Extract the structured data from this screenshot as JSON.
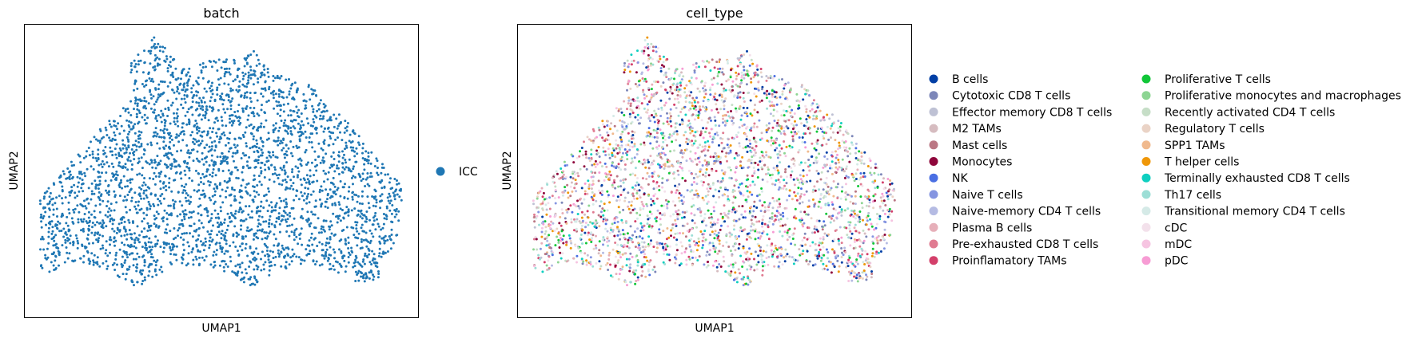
{
  "chart_data": [
    {
      "type": "scatter",
      "title": "batch",
      "xlabel": "UMAP1",
      "ylabel": "UMAP2",
      "grid": false,
      "ticks": false,
      "legend_placement": "right",
      "series": [
        {
          "name": "ICC",
          "color": "#1f77b4"
        }
      ]
    },
    {
      "type": "scatter",
      "title": "cell_type",
      "xlabel": "UMAP1",
      "ylabel": "UMAP2",
      "grid": false,
      "ticks": false,
      "legend_placement": "right",
      "legend_columns": 2,
      "series": [
        {
          "name": "B cells",
          "color": "#023fa5"
        },
        {
          "name": "Cytotoxic CD8 T cells",
          "color": "#7d87b9"
        },
        {
          "name": "Effector memory CD8 T cells",
          "color": "#bec1d4"
        },
        {
          "name": "M2 TAMs",
          "color": "#d6bcc0"
        },
        {
          "name": "Mast cells",
          "color": "#bb7784"
        },
        {
          "name": "Monocytes",
          "color": "#8e063b"
        },
        {
          "name": "NK",
          "color": "#4a6fe3"
        },
        {
          "name": "Naive T cells",
          "color": "#8595e1"
        },
        {
          "name": "Naive-memory CD4 T cells",
          "color": "#b5bbe3"
        },
        {
          "name": "Plasma B cells",
          "color": "#e6afb9"
        },
        {
          "name": "Pre-exhausted CD8 T cells",
          "color": "#e07b91"
        },
        {
          "name": "Proinflamatory TAMs",
          "color": "#d33f6a"
        },
        {
          "name": "Proliferative T cells",
          "color": "#11c638"
        },
        {
          "name": "Proliferative monocytes and macrophages",
          "color": "#8dd593"
        },
        {
          "name": "Recently activated CD4 T cells",
          "color": "#c6dec7"
        },
        {
          "name": "Regulatory T cells",
          "color": "#ead3c6"
        },
        {
          "name": "SPP1 TAMs",
          "color": "#f0b98d"
        },
        {
          "name": "T helper cells",
          "color": "#ef9708"
        },
        {
          "name": "Terminally exhausted CD8 T cells",
          "color": "#0fcfc0"
        },
        {
          "name": "Th17 cells",
          "color": "#9cded6"
        },
        {
          "name": "Transitional memory CD4 T cells",
          "color": "#d5eae7"
        },
        {
          "name": "cDC",
          "color": "#f3e1eb"
        },
        {
          "name": "mDC",
          "color": "#f6c4e1"
        },
        {
          "name": "pDC",
          "color": "#f79cd4"
        }
      ]
    }
  ]
}
